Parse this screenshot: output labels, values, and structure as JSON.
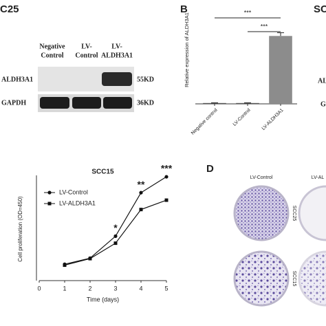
{
  "blot": {
    "cell_line": "C25",
    "lanes": [
      [
        "Negative",
        "Control"
      ],
      [
        "LV-",
        "Control"
      ],
      [
        "LV-",
        "ALDH3A1"
      ]
    ],
    "rows": [
      "ALDH3A1",
      "GAPDH"
    ],
    "sizes": [
      "55KD",
      "36KD"
    ]
  },
  "panels": {
    "b": "B",
    "d": "D",
    "cropped_right": "SC",
    "cropped_row1": "ALD",
    "cropped_row2": "G"
  },
  "colony": {
    "columns": [
      "LV-Control",
      "LV-AL"
    ],
    "rows": [
      "SCC25",
      "SCC15"
    ]
  },
  "chart_data": [
    {
      "type": "bar",
      "y_label": "Relative expression of ALDH3A1",
      "categories": [
        "Negative control",
        "LV-Control",
        "LV-ALDH3A1"
      ],
      "values": [
        1,
        1,
        84
      ],
      "errors": [
        0.3,
        0.3,
        4
      ],
      "colors": [
        "#555555",
        "#555555",
        "#8c8c8c"
      ],
      "ylim": [
        0,
        120
      ],
      "significance": [
        "***",
        "***"
      ]
    },
    {
      "type": "line",
      "title": "SCC15",
      "x_label": "Time (days)",
      "y_label": "Cell proliferation (OD=450)",
      "x": [
        1,
        2,
        3,
        4,
        5
      ],
      "xlim": [
        0,
        5
      ],
      "xticks": [
        0,
        1,
        2,
        3,
        4,
        5
      ],
      "ylim": [
        0,
        2.5
      ],
      "legend": "upper left",
      "series": [
        {
          "name": "LV-Control",
          "color": "#111111",
          "marker": "circle",
          "values": [
            0.35,
            0.48,
            0.95,
            1.88,
            2.22
          ]
        },
        {
          "name": "LV-ALDH3A1",
          "color": "#111111",
          "marker": "square",
          "values": [
            0.33,
            0.47,
            0.8,
            1.52,
            1.72
          ]
        }
      ],
      "annotations": [
        "*",
        "**",
        "***"
      ]
    }
  ]
}
